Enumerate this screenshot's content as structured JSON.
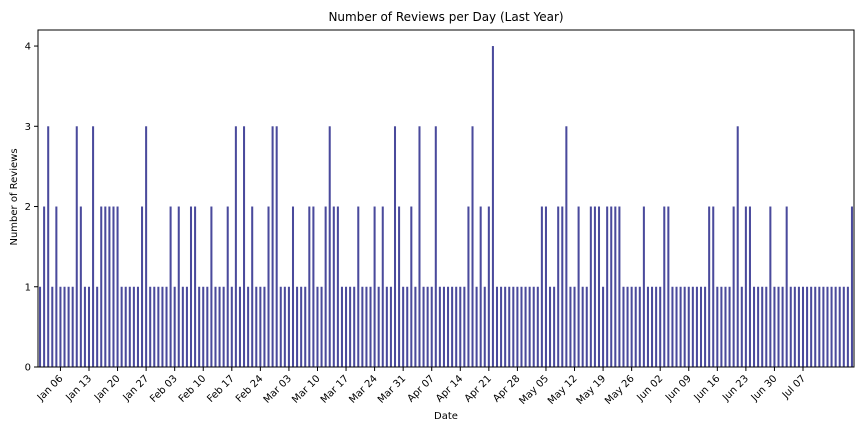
{
  "chart_data": {
    "type": "bar",
    "title": "Number of Reviews per Day (Last Year)",
    "xlabel": "Date",
    "ylabel": "Number of Reviews",
    "ylim": [
      0,
      4.2
    ],
    "y_ticks": [
      0,
      1,
      2,
      3,
      4
    ],
    "x_tick_labels": [
      "Jan 06",
      "Jan 13",
      "Jan 20",
      "Jan 27",
      "Feb 03",
      "Feb 10",
      "Feb 17",
      "Feb 24",
      "Mar 03",
      "Mar 10",
      "Mar 17",
      "Mar 24",
      "Mar 31",
      "Apr 07",
      "Apr 14",
      "Apr 21",
      "Apr 28",
      "May 05",
      "May 12",
      "May 19",
      "May 26",
      "Jun 02",
      "Jun 09",
      "Jun 16",
      "Jun 23",
      "Jun 30",
      "Jul 07"
    ],
    "first_tick_index": 5,
    "tick_every": 7,
    "bar_color": "#4a4a9c",
    "grid": false,
    "values": [
      1,
      2,
      3,
      1,
      2,
      1,
      1,
      1,
      1,
      3,
      2,
      1,
      1,
      3,
      1,
      2,
      2,
      2,
      2,
      2,
      1,
      1,
      1,
      1,
      1,
      2,
      3,
      1,
      1,
      1,
      1,
      1,
      2,
      1,
      2,
      1,
      1,
      2,
      2,
      1,
      1,
      1,
      2,
      1,
      1,
      1,
      2,
      1,
      3,
      1,
      3,
      1,
      2,
      1,
      1,
      1,
      2,
      3,
      3,
      1,
      1,
      1,
      2,
      1,
      1,
      1,
      2,
      2,
      1,
      1,
      2,
      3,
      2,
      2,
      1,
      1,
      1,
      1,
      2,
      1,
      1,
      1,
      2,
      1,
      2,
      1,
      1,
      3,
      2,
      1,
      1,
      2,
      1,
      3,
      1,
      1,
      1,
      3,
      1,
      1,
      1,
      1,
      1,
      1,
      1,
      2,
      3,
      1,
      2,
      1,
      2,
      4,
      1,
      1,
      1,
      1,
      1,
      1,
      1,
      1,
      1,
      1,
      1,
      2,
      2,
      1,
      1,
      2,
      2,
      3,
      1,
      1,
      2,
      1,
      1,
      2,
      2,
      2,
      1,
      2,
      2,
      2,
      2,
      1,
      1,
      1,
      1,
      1,
      2,
      1,
      1,
      1,
      1,
      2,
      2,
      1,
      1,
      1,
      1,
      1,
      1,
      1,
      1,
      1,
      2,
      2,
      1,
      1,
      1,
      1,
      2,
      3,
      1,
      2,
      2,
      1,
      1,
      1,
      1,
      2,
      1,
      1,
      1,
      2,
      1,
      1,
      1,
      1,
      1,
      1,
      1,
      1,
      1,
      1,
      1,
      1,
      1,
      1,
      1,
      2
    ]
  }
}
